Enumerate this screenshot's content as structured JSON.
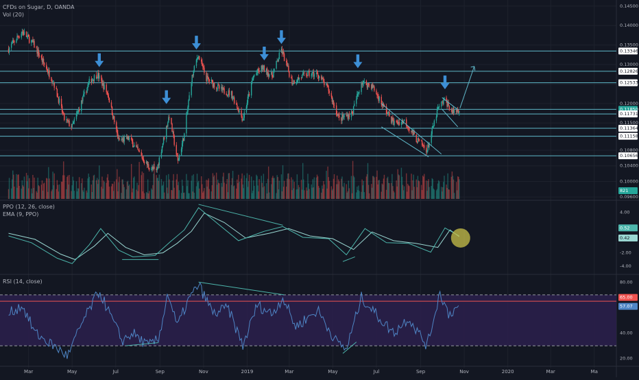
{
  "colors": {
    "background": "#131722",
    "grid": "#1e222d",
    "up": "#26a69a",
    "down": "#ef5350",
    "level_line": "#5fb8c9",
    "arrow": "#3d8fd6",
    "ppo": "#4db6ac",
    "signal": "#9ad7d2",
    "rsi": "#4f86c6",
    "rsi_band": "#2a1f4a",
    "highlight": "#c9c14a",
    "axis_text": "#b2b5be"
  },
  "header": {
    "symbol": "CFDs on Sugar, D, OANDA",
    "volume": "Vol (20)",
    "ppo": "PPO (12, 26, close)",
    "ema": "EMA (9, PPO)",
    "rsi": "RSI (14, close)"
  },
  "chart_data": [
    {
      "type": "candlestick",
      "pane": "price",
      "x_tick_labels": [
        "Mar",
        "May",
        "Jul",
        "Sep",
        "Nov",
        "2019",
        "Mar",
        "May",
        "Jul",
        "Sep",
        "Nov",
        "2020",
        "Mar",
        "Ma"
      ],
      "y_tick_labels": [
        "0.14500",
        "0.14000",
        "0.13500",
        "0.13000",
        "0.12500",
        "0.12000",
        "0.11500",
        "0.10800",
        "0.10400",
        "0.10000",
        "0.09600"
      ],
      "ylim": [
        0.0955,
        0.1455
      ],
      "horizontal_levels": [
        0.13346,
        0.12826,
        0.12533,
        0.1185,
        0.11731,
        0.11364,
        0.11158,
        0.10656
      ],
      "level_labels": [
        "0.13346",
        "0.12826",
        "0.12533",
        "0.11850",
        "0.11731",
        "0.11364",
        "0.11158",
        "0.10656"
      ],
      "current_price": "0.11850",
      "volume_label": "821",
      "close_path": [
        {
          "d": "2018-02-01",
          "v": 0.134
        },
        {
          "d": "2018-02-20",
          "v": 0.1385
        },
        {
          "d": "2018-03-08",
          "v": 0.1352
        },
        {
          "d": "2018-04-05",
          "v": 0.1255
        },
        {
          "d": "2018-04-20",
          "v": 0.116
        },
        {
          "d": "2018-05-01",
          "v": 0.114
        },
        {
          "d": "2018-05-25",
          "v": 0.1255
        },
        {
          "d": "2018-06-05",
          "v": 0.1275
        },
        {
          "d": "2018-06-20",
          "v": 0.1225
        },
        {
          "d": "2018-07-05",
          "v": 0.1105
        },
        {
          "d": "2018-07-20",
          "v": 0.111
        },
        {
          "d": "2018-08-15",
          "v": 0.104
        },
        {
          "d": "2018-08-27",
          "v": 0.1025
        },
        {
          "d": "2018-09-05",
          "v": 0.11
        },
        {
          "d": "2018-09-14",
          "v": 0.117
        },
        {
          "d": "2018-09-26",
          "v": 0.105
        },
        {
          "d": "2018-10-05",
          "v": 0.112
        },
        {
          "d": "2018-10-15",
          "v": 0.126
        },
        {
          "d": "2018-10-24",
          "v": 0.1325
        },
        {
          "d": "2018-11-05",
          "v": 0.1265
        },
        {
          "d": "2018-11-25",
          "v": 0.1235
        },
        {
          "d": "2018-12-10",
          "v": 0.1225
        },
        {
          "d": "2018-12-26",
          "v": 0.116
        },
        {
          "d": "2019-01-10",
          "v": 0.127
        },
        {
          "d": "2019-01-22",
          "v": 0.1292
        },
        {
          "d": "2019-02-05",
          "v": 0.127
        },
        {
          "d": "2019-02-18",
          "v": 0.1338
        },
        {
          "d": "2019-03-05",
          "v": 0.1255
        },
        {
          "d": "2019-03-25",
          "v": 0.1275
        },
        {
          "d": "2019-04-10",
          "v": 0.1275
        },
        {
          "d": "2019-04-25",
          "v": 0.1235
        },
        {
          "d": "2019-05-10",
          "v": 0.116
        },
        {
          "d": "2019-05-28",
          "v": 0.1175
        },
        {
          "d": "2019-06-10",
          "v": 0.1255
        },
        {
          "d": "2019-06-25",
          "v": 0.1245
        },
        {
          "d": "2019-07-10",
          "v": 0.1195
        },
        {
          "d": "2019-07-25",
          "v": 0.115
        },
        {
          "d": "2019-08-10",
          "v": 0.1155
        },
        {
          "d": "2019-08-25",
          "v": 0.111
        },
        {
          "d": "2019-09-10",
          "v": 0.108
        },
        {
          "d": "2019-09-25",
          "v": 0.1185
        },
        {
          "d": "2019-10-05",
          "v": 0.121
        },
        {
          "d": "2019-10-15",
          "v": 0.1178
        },
        {
          "d": "2019-10-25",
          "v": 0.1185
        }
      ]
    },
    {
      "type": "line",
      "pane": "ppo",
      "y_tick_labels": [
        "4.00",
        "-2.00",
        "-4.00"
      ],
      "ylim": [
        -5,
        5.6
      ],
      "last_values": [
        "0.52",
        "0.42"
      ],
      "ppo_path": [
        {
          "d": "2018-02-01",
          "v": 0.5
        },
        {
          "d": "2018-03-05",
          "v": -0.5
        },
        {
          "d": "2018-04-10",
          "v": -2.8
        },
        {
          "d": "2018-05-01",
          "v": -3.6
        },
        {
          "d": "2018-05-25",
          "v": -0.8
        },
        {
          "d": "2018-06-10",
          "v": 1.6
        },
        {
          "d": "2018-07-05",
          "v": -1.6
        },
        {
          "d": "2018-07-25",
          "v": -2.6
        },
        {
          "d": "2018-08-25",
          "v": -2.4
        },
        {
          "d": "2018-09-15",
          "v": -0.4
        },
        {
          "d": "2018-10-05",
          "v": 1.4
        },
        {
          "d": "2018-10-25",
          "v": 4.7
        },
        {
          "d": "2018-11-20",
          "v": 2.4
        },
        {
          "d": "2018-12-20",
          "v": -0.2
        },
        {
          "d": "2019-01-25",
          "v": 1.2
        },
        {
          "d": "2019-02-20",
          "v": 1.9
        },
        {
          "d": "2019-03-20",
          "v": 0.3
        },
        {
          "d": "2019-04-25",
          "v": 0.1
        },
        {
          "d": "2019-05-20",
          "v": -2.3
        },
        {
          "d": "2019-06-15",
          "v": 1.6
        },
        {
          "d": "2019-07-15",
          "v": -0.5
        },
        {
          "d": "2019-08-15",
          "v": -0.6
        },
        {
          "d": "2019-09-15",
          "v": -1.9
        },
        {
          "d": "2019-10-05",
          "v": 1.7
        },
        {
          "d": "2019-10-25",
          "v": 0.5
        }
      ],
      "signal_path": [
        {
          "d": "2018-02-01",
          "v": 0.9
        },
        {
          "d": "2018-03-10",
          "v": 0.0
        },
        {
          "d": "2018-04-15",
          "v": -2.2
        },
        {
          "d": "2018-05-05",
          "v": -3.0
        },
        {
          "d": "2018-06-01",
          "v": -1.0
        },
        {
          "d": "2018-06-20",
          "v": 0.9
        },
        {
          "d": "2018-07-15",
          "v": -1.2
        },
        {
          "d": "2018-08-10",
          "v": -2.3
        },
        {
          "d": "2018-09-05",
          "v": -2.0
        },
        {
          "d": "2018-09-25",
          "v": -0.6
        },
        {
          "d": "2018-10-15",
          "v": 1.2
        },
        {
          "d": "2018-11-02",
          "v": 3.9
        },
        {
          "d": "2018-11-30",
          "v": 2.5
        },
        {
          "d": "2018-12-30",
          "v": 0.2
        },
        {
          "d": "2019-02-01",
          "v": 0.9
        },
        {
          "d": "2019-02-28",
          "v": 1.6
        },
        {
          "d": "2019-03-30",
          "v": 0.5
        },
        {
          "d": "2019-05-01",
          "v": 0.1
        },
        {
          "d": "2019-05-30",
          "v": -1.5
        },
        {
          "d": "2019-06-25",
          "v": 1.1
        },
        {
          "d": "2019-07-25",
          "v": -0.2
        },
        {
          "d": "2019-08-25",
          "v": -0.6
        },
        {
          "d": "2019-09-25",
          "v": -1.2
        },
        {
          "d": "2019-10-12",
          "v": 1.4
        },
        {
          "d": "2019-10-25",
          "v": 0.4
        }
      ]
    },
    {
      "type": "line",
      "pane": "rsi",
      "y_tick_labels": [
        "80.00",
        "40.00",
        "20.00"
      ],
      "ylim": [
        15,
        85
      ],
      "levels": [
        70,
        30
      ],
      "last_values": [
        "65.00",
        "57.07"
      ],
      "rsi_path": [
        {
          "d": "2018-02-01",
          "v": 55
        },
        {
          "d": "2018-02-20",
          "v": 62
        },
        {
          "d": "2018-03-10",
          "v": 40
        },
        {
          "d": "2018-04-10",
          "v": 28
        },
        {
          "d": "2018-04-25",
          "v": 22
        },
        {
          "d": "2018-05-15",
          "v": 48
        },
        {
          "d": "2018-06-08",
          "v": 73
        },
        {
          "d": "2018-06-25",
          "v": 52
        },
        {
          "d": "2018-07-10",
          "v": 34
        },
        {
          "d": "2018-07-25",
          "v": 40
        },
        {
          "d": "2018-08-15",
          "v": 30
        },
        {
          "d": "2018-08-30",
          "v": 35
        },
        {
          "d": "2018-09-12",
          "v": 72
        },
        {
          "d": "2018-09-25",
          "v": 45
        },
        {
          "d": "2018-10-10",
          "v": 65
        },
        {
          "d": "2018-10-25",
          "v": 78
        },
        {
          "d": "2018-11-15",
          "v": 55
        },
        {
          "d": "2018-12-05",
          "v": 60
        },
        {
          "d": "2018-12-26",
          "v": 30
        },
        {
          "d": "2019-01-15",
          "v": 62
        },
        {
          "d": "2019-02-05",
          "v": 55
        },
        {
          "d": "2019-02-20",
          "v": 68
        },
        {
          "d": "2019-03-10",
          "v": 45
        },
        {
          "d": "2019-04-10",
          "v": 58
        },
        {
          "d": "2019-05-05",
          "v": 34
        },
        {
          "d": "2019-05-20",
          "v": 27
        },
        {
          "d": "2019-06-10",
          "v": 68
        },
        {
          "d": "2019-07-05",
          "v": 52
        },
        {
          "d": "2019-07-25",
          "v": 40
        },
        {
          "d": "2019-08-15",
          "v": 52
        },
        {
          "d": "2019-09-10",
          "v": 30
        },
        {
          "d": "2019-09-28",
          "v": 72
        },
        {
          "d": "2019-10-10",
          "v": 55
        },
        {
          "d": "2019-10-25",
          "v": 61
        }
      ]
    }
  ]
}
